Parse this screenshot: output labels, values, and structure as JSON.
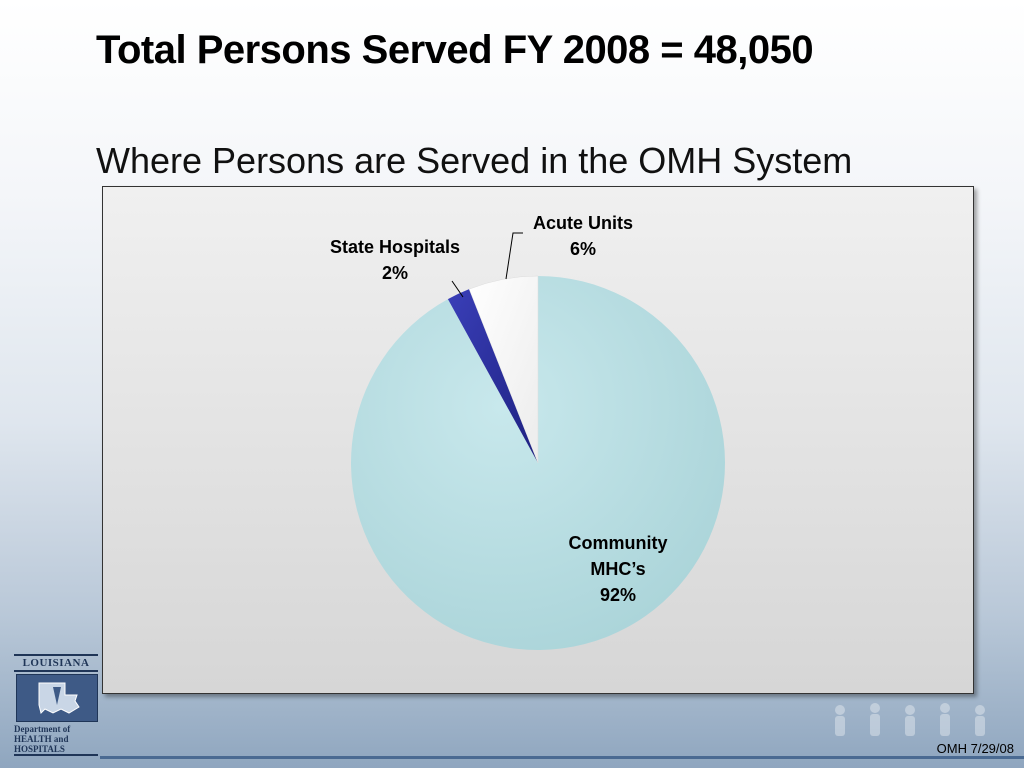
{
  "title": "Total Persons Served FY 2008 = 48,050",
  "subtitle": "Where Persons are Served in the OMH System",
  "chart_data": {
    "type": "pie",
    "slices": [
      {
        "label_lines": [
          "Community",
          "MHC’s"
        ],
        "value": 92,
        "value_label": "92%",
        "color": "#bfe2e6"
      },
      {
        "label_lines": [
          "State Hospitals"
        ],
        "value": 2,
        "value_label": "2%",
        "color": "#2b2f9e"
      },
      {
        "label_lines": [
          "Acute Units"
        ],
        "value": 6,
        "value_label": "6%",
        "color": "#ffffff"
      }
    ],
    "start": "12 o'clock",
    "direction": "clockwise",
    "legend": "none"
  },
  "logo": {
    "top_text": "LOUISIANA",
    "bottom_lines": [
      "Department of",
      "HEALTH and",
      "HOSPITALS"
    ]
  },
  "footer": {
    "text": "OMH  7/29/08"
  },
  "colors": {
    "border": "#333333",
    "rule": "#4a6a92",
    "logo": "#1f3557"
  }
}
